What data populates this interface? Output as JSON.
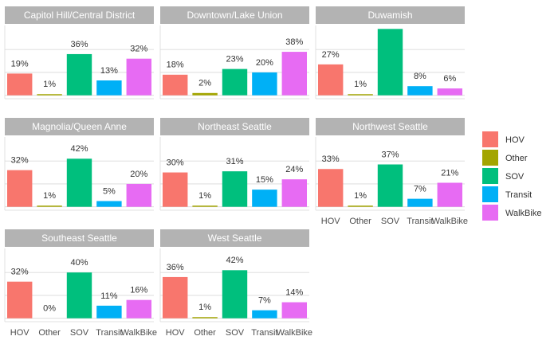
{
  "chart_data": {
    "type": "bar",
    "categories": [
      "HOV",
      "Other",
      "SOV",
      "Transit",
      "WalkBike"
    ],
    "colors": [
      "#F8766D",
      "#A3A500",
      "#00BF7D",
      "#00B0F6",
      "#E76BF3"
    ],
    "ylim": [
      -3,
      61
    ],
    "yticks": [
      0,
      20,
      40
    ],
    "grid": true,
    "legend": "right",
    "facets": [
      {
        "title": "Capitol Hill/Central District",
        "values": [
          19,
          1,
          36,
          13,
          32
        ],
        "value_labels": [
          "19%",
          "1%",
          "36%",
          "13%",
          "32%"
        ]
      },
      {
        "title": "Downtown/Lake Union",
        "values": [
          18,
          2,
          23,
          20,
          38
        ],
        "value_labels": [
          "18%",
          "2%",
          "23%",
          "20%",
          "38%"
        ]
      },
      {
        "title": "Duwamish",
        "values": [
          27,
          1,
          58,
          8,
          6
        ],
        "value_labels": [
          "27%",
          "1%",
          null,
          "8%",
          "6%"
        ]
      },
      {
        "title": "Magnolia/Queen Anne",
        "values": [
          32,
          1,
          42,
          5,
          20
        ],
        "value_labels": [
          "32%",
          "1%",
          "42%",
          "5%",
          "20%"
        ]
      },
      {
        "title": "Northeast Seattle",
        "values": [
          30,
          1,
          31,
          15,
          24
        ],
        "value_labels": [
          "30%",
          "1%",
          "31%",
          "15%",
          "24%"
        ]
      },
      {
        "title": "Northwest Seattle",
        "values": [
          33,
          1,
          37,
          7,
          21
        ],
        "value_labels": [
          "33%",
          "1%",
          "37%",
          "7%",
          "21%"
        ]
      },
      {
        "title": "Southeast Seattle",
        "values": [
          32,
          0,
          40,
          11,
          16
        ],
        "value_labels": [
          "32%",
          "0%",
          "40%",
          "11%",
          "16%"
        ]
      },
      {
        "title": "West Seattle",
        "values": [
          36,
          1,
          42,
          7,
          14
        ],
        "value_labels": [
          "36%",
          "1%",
          "42%",
          "7%",
          "14%"
        ]
      }
    ]
  }
}
